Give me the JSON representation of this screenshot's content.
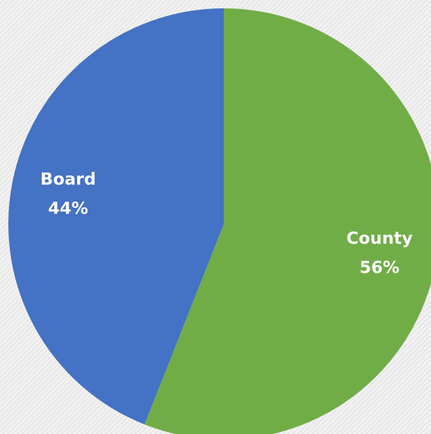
{
  "chart_data": {
    "type": "pie",
    "categories": [
      "County",
      "Board"
    ],
    "values": [
      56,
      44
    ],
    "value_labels": [
      "56%",
      "44%"
    ],
    "colors": [
      "#70ad47",
      "#4472c4"
    ]
  }
}
